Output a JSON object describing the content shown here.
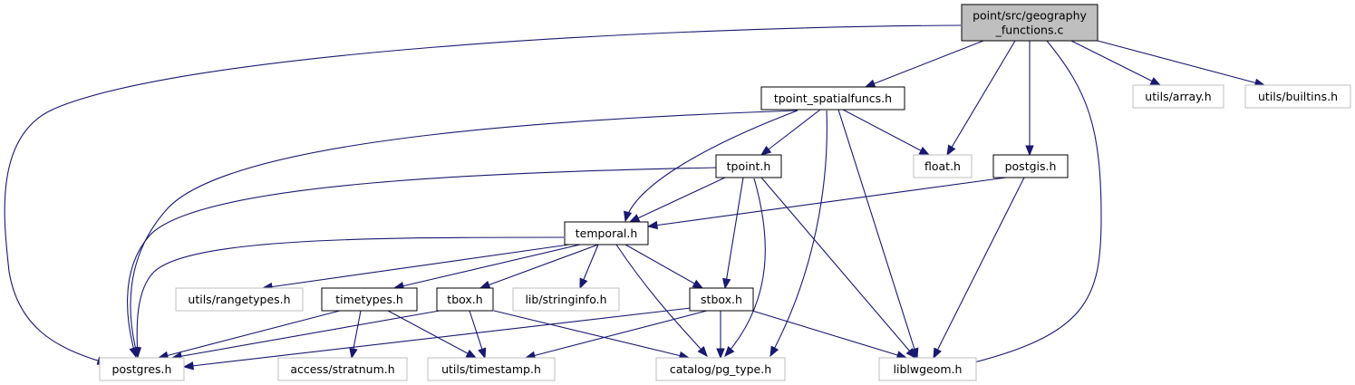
{
  "colors": {
    "edge": "#191970",
    "root_fill": "#bfbfbf",
    "documented_border": "#000000",
    "external_border": "#bfbfbf"
  },
  "nodes": {
    "root": {
      "label_lines": [
        "point/src/geography",
        "_functions.c"
      ],
      "kind": "root"
    },
    "tpoint_spatialfuncs": {
      "label_lines": [
        "tpoint_spatialfuncs.h"
      ],
      "kind": "documented"
    },
    "utils_array": {
      "label_lines": [
        "utils/array.h"
      ],
      "kind": "external"
    },
    "utils_builtins": {
      "label_lines": [
        "utils/builtins.h"
      ],
      "kind": "external"
    },
    "tpoint": {
      "label_lines": [
        "tpoint.h"
      ],
      "kind": "documented"
    },
    "float": {
      "label_lines": [
        "float.h"
      ],
      "kind": "external"
    },
    "postgis": {
      "label_lines": [
        "postgis.h"
      ],
      "kind": "documented"
    },
    "temporal": {
      "label_lines": [
        "temporal.h"
      ],
      "kind": "documented"
    },
    "utils_rangetypes": {
      "label_lines": [
        "utils/rangetypes.h"
      ],
      "kind": "external"
    },
    "timetypes": {
      "label_lines": [
        "timetypes.h"
      ],
      "kind": "documented"
    },
    "tbox": {
      "label_lines": [
        "tbox.h"
      ],
      "kind": "documented"
    },
    "lib_stringinfo": {
      "label_lines": [
        "lib/stringinfo.h"
      ],
      "kind": "external"
    },
    "stbox": {
      "label_lines": [
        "stbox.h"
      ],
      "kind": "documented"
    },
    "postgres": {
      "label_lines": [
        "postgres.h"
      ],
      "kind": "external"
    },
    "access_stratnum": {
      "label_lines": [
        "access/stratnum.h"
      ],
      "kind": "external"
    },
    "utils_timestamp": {
      "label_lines": [
        "utils/timestamp.h"
      ],
      "kind": "external"
    },
    "catalog_pg_type": {
      "label_lines": [
        "catalog/pg_type.h"
      ],
      "kind": "external"
    },
    "liblwgeom": {
      "label_lines": [
        "liblwgeom.h"
      ],
      "kind": "external"
    }
  },
  "edges": [
    [
      "root",
      "postgres"
    ],
    [
      "root",
      "tpoint_spatialfuncs"
    ],
    [
      "root",
      "float"
    ],
    [
      "root",
      "postgis"
    ],
    [
      "root",
      "liblwgeom"
    ],
    [
      "root",
      "utils_array"
    ],
    [
      "root",
      "utils_builtins"
    ],
    [
      "tpoint_spatialfuncs",
      "postgres"
    ],
    [
      "tpoint_spatialfuncs",
      "temporal"
    ],
    [
      "tpoint_spatialfuncs",
      "tpoint"
    ],
    [
      "tpoint_spatialfuncs",
      "float"
    ],
    [
      "tpoint_spatialfuncs",
      "catalog_pg_type"
    ],
    [
      "tpoint_spatialfuncs",
      "liblwgeom"
    ],
    [
      "tpoint",
      "postgres"
    ],
    [
      "tpoint",
      "temporal"
    ],
    [
      "tpoint",
      "stbox"
    ],
    [
      "tpoint",
      "catalog_pg_type"
    ],
    [
      "tpoint",
      "liblwgeom"
    ],
    [
      "postgis",
      "temporal"
    ],
    [
      "postgis",
      "liblwgeom"
    ],
    [
      "temporal",
      "postgres"
    ],
    [
      "temporal",
      "utils_rangetypes"
    ],
    [
      "temporal",
      "timetypes"
    ],
    [
      "temporal",
      "tbox"
    ],
    [
      "temporal",
      "lib_stringinfo"
    ],
    [
      "temporal",
      "stbox"
    ],
    [
      "temporal",
      "catalog_pg_type"
    ],
    [
      "timetypes",
      "postgres"
    ],
    [
      "timetypes",
      "access_stratnum"
    ],
    [
      "timetypes",
      "utils_timestamp"
    ],
    [
      "tbox",
      "postgres"
    ],
    [
      "tbox",
      "utils_timestamp"
    ],
    [
      "tbox",
      "catalog_pg_type"
    ],
    [
      "stbox",
      "postgres"
    ],
    [
      "stbox",
      "utils_timestamp"
    ],
    [
      "stbox",
      "catalog_pg_type"
    ],
    [
      "stbox",
      "liblwgeom"
    ]
  ]
}
